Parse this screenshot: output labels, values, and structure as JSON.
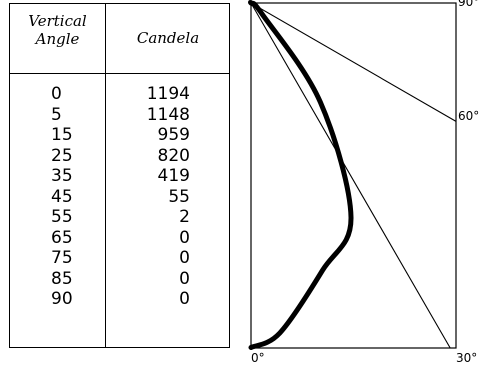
{
  "chart_data": [
    {
      "type": "table",
      "columns": [
        "Vertical Angle",
        "Candela"
      ],
      "header_angle_lines": [
        "Vertical",
        "Angle"
      ],
      "header_candela": "Candela",
      "rows": [
        {
          "angle": "0",
          "candela": "1194"
        },
        {
          "angle": "5",
          "candela": "1148"
        },
        {
          "angle": "15",
          "candela": "959"
        },
        {
          "angle": "25",
          "candela": "820"
        },
        {
          "angle": "35",
          "candela": "419"
        },
        {
          "angle": "45",
          "candela": "55"
        },
        {
          "angle": "55",
          "candela": "2"
        },
        {
          "angle": "65",
          "candela": "0"
        },
        {
          "angle": "75",
          "candela": "0"
        },
        {
          "angle": "85",
          "candela": "0"
        },
        {
          "angle": "90",
          "candela": "0"
        }
      ]
    },
    {
      "type": "line",
      "angle_labels": [
        "0°",
        "30°",
        "60°",
        "90°"
      ],
      "curve": [
        {
          "angle": 0,
          "candela": 1194
        },
        {
          "angle": 5,
          "candela": 1148
        },
        {
          "angle": 15,
          "candela": 959
        },
        {
          "angle": 25,
          "candela": 820
        },
        {
          "angle": 35,
          "candela": 419
        },
        {
          "angle": 45,
          "candela": 55
        },
        {
          "angle": 55,
          "candela": 2
        },
        {
          "angle": 65,
          "candela": 0
        },
        {
          "angle": 75,
          "candela": 0
        },
        {
          "angle": 85,
          "candela": 0
        },
        {
          "angle": 90,
          "candela": 0
        }
      ]
    }
  ]
}
